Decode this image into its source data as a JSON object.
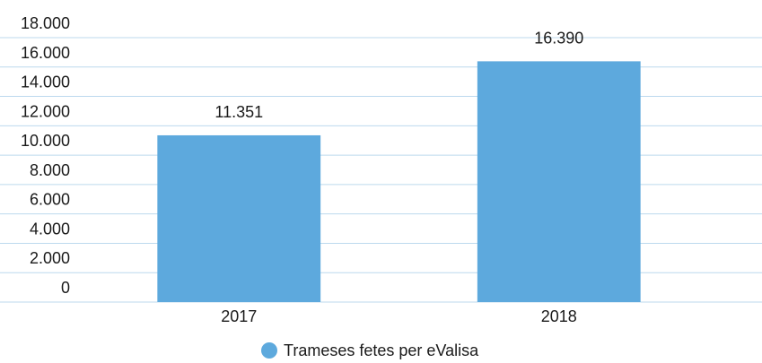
{
  "chart_data": {
    "type": "bar",
    "categories": [
      "2017",
      "2018"
    ],
    "series": [
      {
        "name": "Trameses fetes per eValisa",
        "color": "#5da9dd",
        "values": [
          11351,
          16390
        ],
        "value_labels": [
          "11.351",
          "16.390"
        ]
      }
    ],
    "ylim": [
      0,
      18000
    ],
    "yticks": [
      0,
      {
        "value": 2000,
        "label": "2.000"
      },
      {
        "value": 4000,
        "label": "4.000"
      },
      {
        "value": 6000,
        "label": "6.000"
      },
      {
        "value": 8000,
        "label": "8.000"
      },
      {
        "value": 10000,
        "label": "10.000"
      },
      {
        "value": 12000,
        "label": "12.000"
      },
      {
        "value": 14000,
        "label": "14.000"
      },
      {
        "value": 16000,
        "label": "16.000"
      },
      {
        "value": 18000,
        "label": "18.000"
      }
    ],
    "grid": true,
    "legend": "bottom"
  }
}
